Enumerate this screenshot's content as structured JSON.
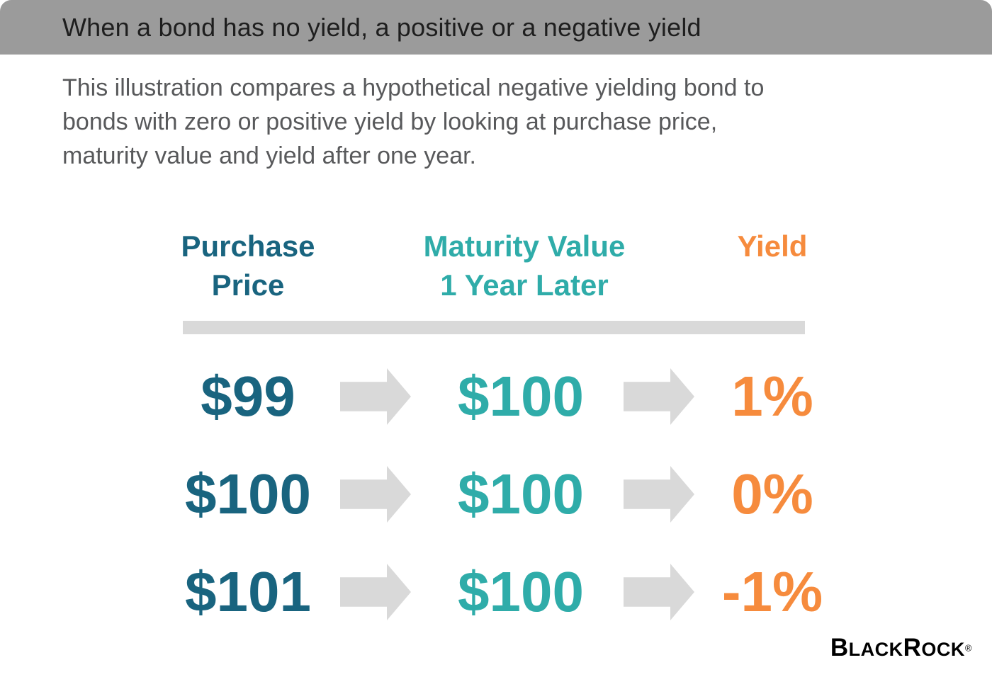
{
  "header": {
    "title": "When a bond has no yield, a positive or a negative yield"
  },
  "intro": {
    "text": "This illustration compares a hypothetical negative yielding bond to bonds with zero or positive yield by looking at purchase price, maturity value and yield after one year.",
    "lines": [
      "This illustration compares a hypothetical negative yielding bond to",
      "bonds with zero or positive yield by looking at purchase price,",
      "maturity value and yield after one year."
    ]
  },
  "table": {
    "headers": {
      "purchase": [
        "Purchase",
        "Price"
      ],
      "maturity": [
        "Maturity Value",
        "1 Year Later"
      ],
      "yield": "Yield"
    },
    "rows": [
      {
        "purchase_price": "$99",
        "maturity_value": "$100",
        "yield": "1%"
      },
      {
        "purchase_price": "$100",
        "maturity_value": "$100",
        "yield": "0%"
      },
      {
        "purchase_price": "$101",
        "maturity_value": "$100",
        "yield": "-1%"
      }
    ]
  },
  "chart_data": {
    "type": "table",
    "title": "When a bond has no yield, a positive or a negative yield",
    "columns": [
      "Purchase Price",
      "Maturity Value 1 Year Later",
      "Yield"
    ],
    "rows": [
      [
        "$99",
        "$100",
        "1%"
      ],
      [
        "$100",
        "$100",
        "0%"
      ],
      [
        "$101",
        "$100",
        "-1%"
      ]
    ]
  },
  "brand": {
    "name": "BlackRock",
    "b": "B",
    "lack": "LACK",
    "r": "R",
    "ock": "OCK",
    "reg": "®"
  },
  "colors": {
    "header_bar": "#9B9B9B",
    "title_text": "#1E1E1E",
    "body_text": "#58595B",
    "purchase_teal_dark": "#19647F",
    "maturity_teal": "#2FACA9",
    "yield_orange": "#F68B3D",
    "arrow_gray": "#D9D9D9",
    "divider_gray": "#D9D9D9",
    "logo_black": "#000000"
  }
}
